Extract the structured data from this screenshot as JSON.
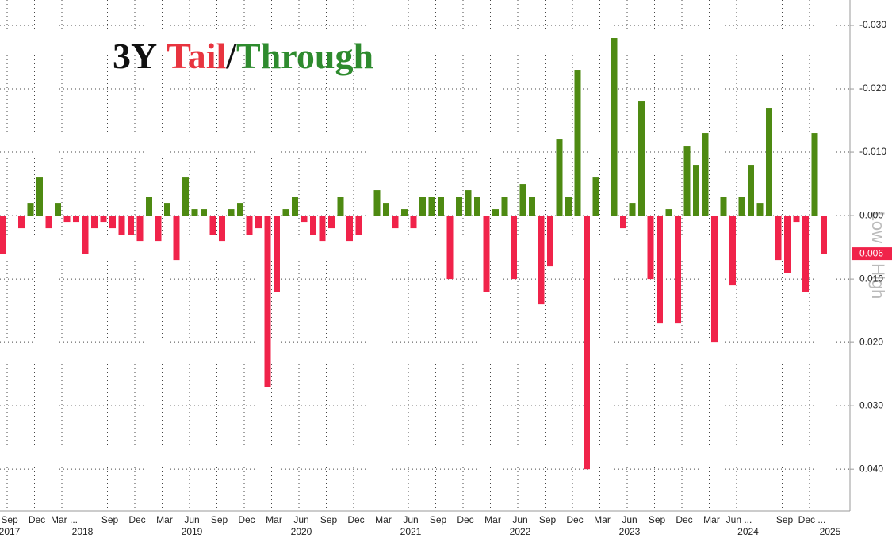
{
  "chart_data": {
    "type": "bar",
    "title": [
      {
        "text": "3Y",
        "color": "#111111"
      },
      {
        "text": "Tail",
        "color": "#e8343f"
      },
      {
        "text": "/",
        "color": "#111111"
      },
      {
        "text": "Through",
        "color": "#2e8b2e"
      }
    ],
    "y_axis_label": "Low = High",
    "categories": [
      "Sep",
      null,
      null,
      "Dec",
      null,
      null,
      "Mar ...",
      null,
      null,
      null,
      null,
      "Sep",
      null,
      null,
      "Dec",
      null,
      null,
      "Mar",
      null,
      null,
      "Jun",
      null,
      null,
      "Sep",
      null,
      null,
      "Dec",
      null,
      null,
      "Mar",
      null,
      null,
      "Jun",
      null,
      null,
      "Sep",
      null,
      null,
      "Dec",
      null,
      null,
      "Mar",
      null,
      null,
      "Jun",
      null,
      null,
      "Sep",
      null,
      null,
      "Dec",
      null,
      null,
      "Mar",
      null,
      null,
      "Jun",
      null,
      null,
      "Sep",
      null,
      null,
      "Dec",
      null,
      null,
      "Mar",
      null,
      null,
      "Jun",
      null,
      null,
      "Sep",
      null,
      null,
      "Dec",
      null,
      null,
      "Mar",
      null,
      null,
      "Jun ...",
      null,
      null,
      null,
      null,
      "Sep",
      null,
      null,
      "Dec ...",
      null,
      null
    ],
    "years": [
      "2017",
      null,
      null,
      null,
      null,
      null,
      null,
      null,
      "2018",
      null,
      null,
      null,
      null,
      null,
      null,
      null,
      null,
      null,
      null,
      null,
      "2019",
      null,
      null,
      null,
      null,
      null,
      null,
      null,
      null,
      null,
      null,
      null,
      "2020",
      null,
      null,
      null,
      null,
      null,
      null,
      null,
      null,
      null,
      null,
      null,
      "2021",
      null,
      null,
      null,
      null,
      null,
      null,
      null,
      null,
      null,
      null,
      null,
      "2022",
      null,
      null,
      null,
      null,
      null,
      null,
      null,
      null,
      null,
      null,
      null,
      "2023",
      null,
      null,
      null,
      null,
      null,
      null,
      null,
      null,
      null,
      null,
      null,
      null,
      "2024",
      null,
      null,
      null,
      null,
      null,
      null,
      null,
      null,
      "2025"
    ],
    "values": [
      0.006,
      0,
      0.002,
      -0.002,
      -0.006,
      0.002,
      -0.002,
      0.001,
      0.001,
      0.006,
      0.002,
      0.001,
      0.002,
      0.003,
      0.003,
      0.004,
      -0.003,
      0.004,
      -0.002,
      0.007,
      -0.006,
      -0.001,
      -0.001,
      0.003,
      0.004,
      -0.001,
      -0.002,
      0.003,
      0.002,
      0.027,
      0.012,
      -0.001,
      -0.003,
      0.001,
      0.003,
      0.004,
      0.002,
      -0.003,
      0.004,
      0.003,
      0,
      -0.004,
      -0.002,
      0.002,
      -0.001,
      0.002,
      -0.003,
      -0.003,
      -0.003,
      0.01,
      -0.003,
      -0.004,
      -0.003,
      0.012,
      -0.001,
      -0.003,
      0.01,
      -0.005,
      -0.003,
      0.014,
      0.008,
      -0.012,
      -0.003,
      -0.023,
      0.04,
      -0.006,
      0,
      -0.028,
      0.002,
      -0.002,
      -0.018,
      0.01,
      0.017,
      -0.001,
      0.017,
      -0.011,
      -0.008,
      -0.013,
      0.02,
      -0.003,
      0.011,
      -0.003,
      -0.008,
      -0.002,
      -0.017,
      0.007,
      0.009,
      0.001,
      0.012,
      -0.013,
      0.006
    ],
    "positive_color": "#f0234a",
    "negative_color": "#4e8a12",
    "ylim": [
      -0.034,
      0.0466
    ],
    "inverted": true,
    "yticks": [
      {
        "value": -0.03,
        "label": "-0.030"
      },
      {
        "value": -0.02,
        "label": "-0.020"
      },
      {
        "value": -0.01,
        "label": "-0.010"
      },
      {
        "value": 0,
        "label": "0.000"
      },
      {
        "value": 0.01,
        "label": "0.010"
      },
      {
        "value": 0.02,
        "label": "0.020"
      },
      {
        "value": 0.03,
        "label": "0.030"
      },
      {
        "value": 0.04,
        "label": "0.040"
      }
    ],
    "grid": true,
    "label_last": true
  }
}
